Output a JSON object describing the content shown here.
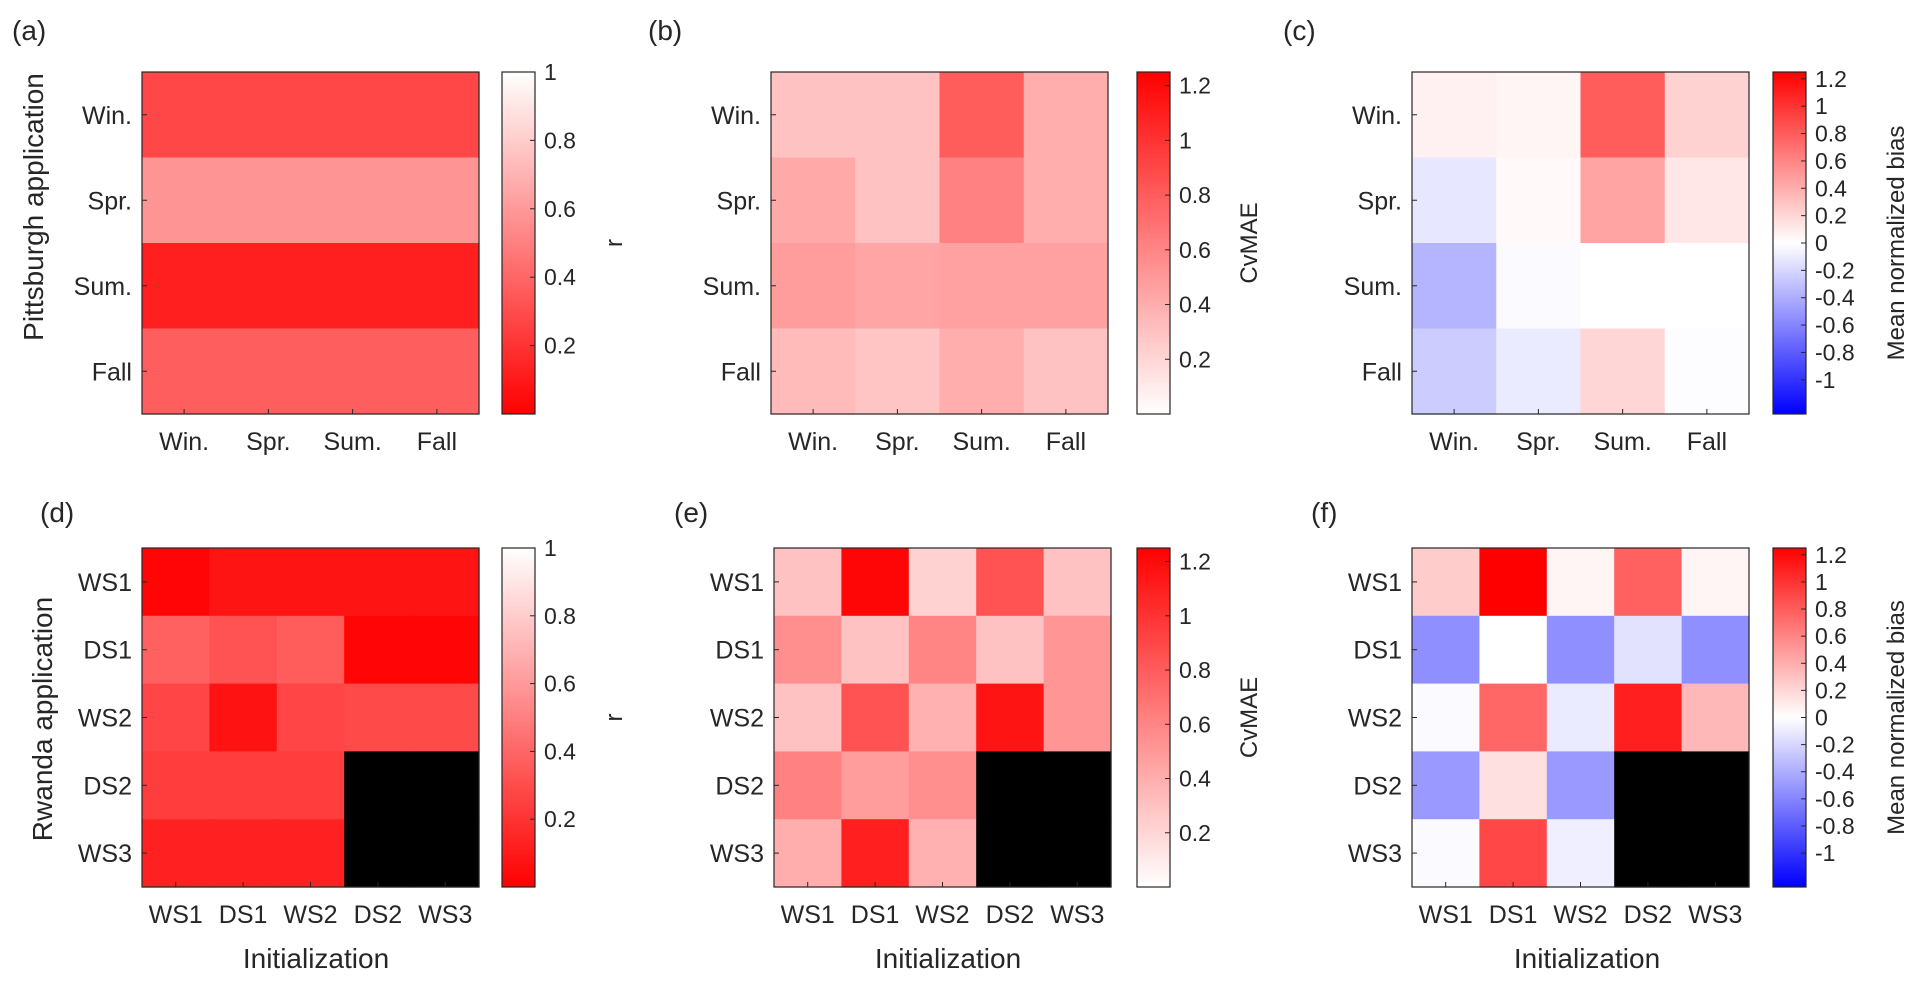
{
  "figure": {
    "row_labels": [
      "Pittsburgh application",
      "Rwanda application"
    ],
    "xlabel_bottom": "Initialization"
  },
  "colorbars": {
    "r": {
      "label": "r",
      "ticks": [
        "0.2",
        "0.4",
        "0.6",
        "0.8",
        "1"
      ],
      "tick_values": [
        0.2,
        0.4,
        0.6,
        0.8,
        1
      ],
      "range": [
        0,
        1
      ],
      "colormap": "red-to-white"
    },
    "cvmae": {
      "label": "CvMAE",
      "ticks": [
        "0.2",
        "0.4",
        "0.6",
        "0.8",
        "1",
        "1.2"
      ],
      "tick_values": [
        0.2,
        0.4,
        0.6,
        0.8,
        1,
        1.2
      ],
      "range": [
        0,
        1.25
      ],
      "colormap": "white-to-red"
    },
    "bias": {
      "label": "Mean normalized bias",
      "ticks": [
        "-1",
        "-0.8",
        "-0.6",
        "-0.4",
        "-0.2",
        "0",
        "0.2",
        "0.4",
        "0.6",
        "0.8",
        "1",
        "1.2"
      ],
      "tick_values": [
        -1,
        -0.8,
        -0.6,
        -0.4,
        -0.2,
        0,
        0.2,
        0.4,
        0.6,
        0.8,
        1,
        1.2
      ],
      "range": [
        -1.25,
        1.25
      ],
      "colormap": "blue-white-red"
    }
  },
  "colors": {
    "red": "#ff0000",
    "white": "#ffffff",
    "blue": "#0000ff",
    "missing": "#000000"
  },
  "chart_data": [
    {
      "type": "heatmap",
      "panel": "(a)",
      "metric": "r",
      "x": [
        "Win.",
        "Spr.",
        "Sum.",
        "Fall"
      ],
      "y": [
        "Win.",
        "Spr.",
        "Sum.",
        "Fall"
      ],
      "values": [
        [
          0.28,
          0.28,
          0.28,
          0.28
        ],
        [
          0.58,
          0.58,
          0.58,
          0.58
        ],
        [
          0.12,
          0.12,
          0.12,
          0.12
        ],
        [
          0.37,
          0.37,
          0.37,
          0.37
        ]
      ]
    },
    {
      "type": "heatmap",
      "panel": "(b)",
      "metric": "cvmae",
      "x": [
        "Win.",
        "Spr.",
        "Sum.",
        "Fall"
      ],
      "y": [
        "Win.",
        "Spr.",
        "Sum.",
        "Fall"
      ],
      "values": [
        [
          0.3,
          0.3,
          0.8,
          0.4
        ],
        [
          0.42,
          0.3,
          0.62,
          0.4
        ],
        [
          0.48,
          0.44,
          0.46,
          0.46
        ],
        [
          0.34,
          0.29,
          0.4,
          0.3
        ]
      ]
    },
    {
      "type": "heatmap",
      "panel": "(c)",
      "metric": "bias",
      "x": [
        "Win.",
        "Spr.",
        "Sum.",
        "Fall"
      ],
      "y": [
        "Win.",
        "Spr.",
        "Sum.",
        "Fall"
      ],
      "values": [
        [
          0.07,
          0.05,
          0.8,
          0.22
        ],
        [
          -0.12,
          0.03,
          0.45,
          0.12
        ],
        [
          -0.37,
          -0.02,
          0.0,
          0.0
        ],
        [
          -0.25,
          -0.1,
          0.2,
          -0.01
        ]
      ]
    },
    {
      "type": "heatmap",
      "panel": "(d)",
      "metric": "r",
      "x": [
        "WS1",
        "DS1",
        "WS2",
        "DS2",
        "WS3"
      ],
      "y": [
        "WS1",
        "DS1",
        "WS2",
        "DS2",
        "WS3"
      ],
      "values": [
        [
          0.02,
          0.08,
          0.08,
          0.08,
          0.08
        ],
        [
          0.38,
          0.32,
          0.36,
          0.02,
          0.02
        ],
        [
          0.27,
          0.07,
          0.27,
          0.29,
          0.29
        ],
        [
          0.24,
          0.24,
          0.24,
          null,
          null
        ],
        [
          0.13,
          0.13,
          0.13,
          null,
          null
        ]
      ]
    },
    {
      "type": "heatmap",
      "panel": "(e)",
      "metric": "cvmae",
      "x": [
        "WS1",
        "DS1",
        "WS2",
        "DS2",
        "WS3"
      ],
      "y": [
        "WS1",
        "DS1",
        "WS2",
        "DS2",
        "WS3"
      ],
      "values": [
        [
          0.3,
          1.22,
          0.22,
          0.85,
          0.3
        ],
        [
          0.55,
          0.3,
          0.6,
          0.3,
          0.52
        ],
        [
          0.3,
          0.85,
          0.38,
          1.15,
          0.52
        ],
        [
          0.62,
          0.48,
          0.55,
          null,
          null
        ],
        [
          0.4,
          1.1,
          0.38,
          null,
          null
        ]
      ]
    },
    {
      "type": "heatmap",
      "panel": "(f)",
      "metric": "bias",
      "x": [
        "WS1",
        "DS1",
        "WS2",
        "DS2",
        "WS3"
      ],
      "y": [
        "WS1",
        "DS1",
        "WS2",
        "DS2",
        "WS3"
      ],
      "values": [
        [
          0.25,
          1.25,
          0.05,
          0.78,
          0.05
        ],
        [
          -0.55,
          0.0,
          -0.55,
          -0.14,
          -0.55
        ],
        [
          -0.02,
          0.75,
          -0.1,
          1.1,
          0.35
        ],
        [
          -0.5,
          0.15,
          -0.5,
          null,
          null
        ],
        [
          -0.02,
          0.9,
          -0.08,
          null,
          null
        ]
      ]
    }
  ]
}
